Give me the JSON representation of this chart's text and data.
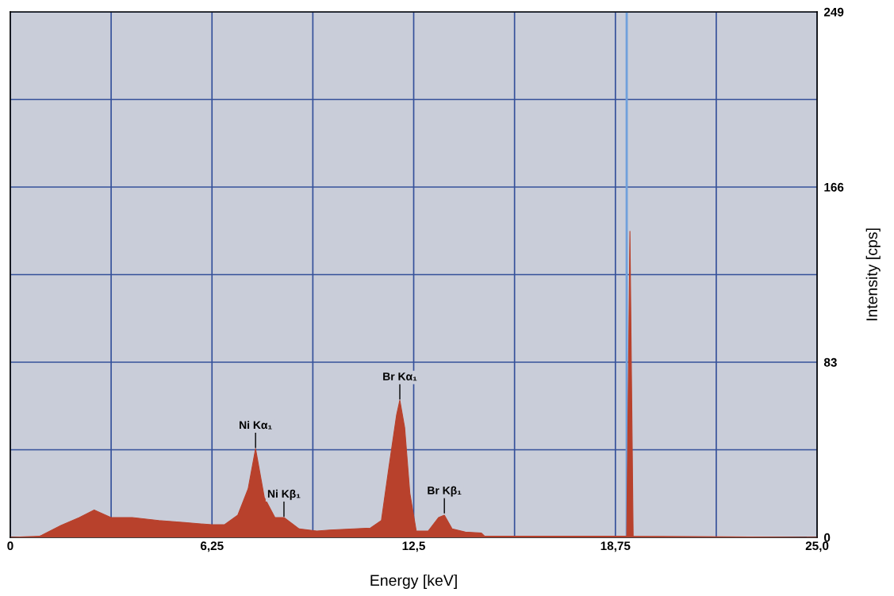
{
  "chart_data": {
    "type": "area",
    "xlabel": "Energy [keV]",
    "ylabel": "Intensity [cps]",
    "x": [
      0,
      0.9,
      0.98,
      1.57,
      2.14,
      2.6,
      3.12,
      3.78,
      4.6,
      5.4,
      6.24,
      6.64,
      7.05,
      7.37,
      7.6,
      7.87,
      8.2,
      8.48,
      8.95,
      9.5,
      9.9,
      11.16,
      11.5,
      11.73,
      11.97,
      12.07,
      12.22,
      12.38,
      12.58,
      12.95,
      13.27,
      13.45,
      13.69,
      14.1,
      14.6,
      14.7,
      19.1,
      19.2,
      19.3,
      25
    ],
    "series": [
      {
        "color": "#b8412c",
        "values": [
          0,
          0.5,
          1,
          5.6,
          9.4,
          13,
          9.4,
          9.4,
          8,
          7,
          6,
          6,
          10.5,
          23,
          42,
          19,
          9.4,
          9.4,
          4,
          3,
          3.5,
          4.4,
          8,
          33,
          58,
          65,
          52,
          21,
          3,
          3,
          9.4,
          10.5,
          4,
          2.5,
          2,
          0.5,
          0.5,
          145,
          0.5,
          0
        ]
      }
    ],
    "xlim": [
      0,
      25
    ],
    "ylim": [
      0,
      249
    ],
    "xticks": [
      0,
      {
        "value": 3.125,
        "label": null
      },
      {
        "value": 6.25,
        "label": "6,25"
      },
      {
        "value": 9.375,
        "label": null
      },
      {
        "value": 12.5,
        "label": "12,5"
      },
      {
        "value": 15.625,
        "label": null
      },
      {
        "value": 18.75,
        "label": "18,75"
      },
      {
        "value": 21.875,
        "label": null
      },
      {
        "value": 25,
        "label": "25,0"
      }
    ],
    "yticks": [
      0,
      {
        "value": 41.5,
        "label": null
      },
      83,
      {
        "value": 124.5,
        "label": null
      },
      166,
      {
        "value": 207.5,
        "label": null
      },
      249
    ],
    "grid": true,
    "ref_lines": [
      {
        "axis": "x",
        "value": 19.1,
        "label": null,
        "color": "#6fa0dc"
      }
    ],
    "annotations": [
      {
        "text": "Ni Kα₁",
        "x": 7.6,
        "y": 42
      },
      {
        "text": "Ni Kβ₁",
        "x": 8.48,
        "y": 9.4
      },
      {
        "text": "Br Kα₁",
        "x": 12.07,
        "y": 65
      },
      {
        "text": "Br Kβ₁",
        "x": 13.45,
        "y": 11
      }
    ]
  }
}
